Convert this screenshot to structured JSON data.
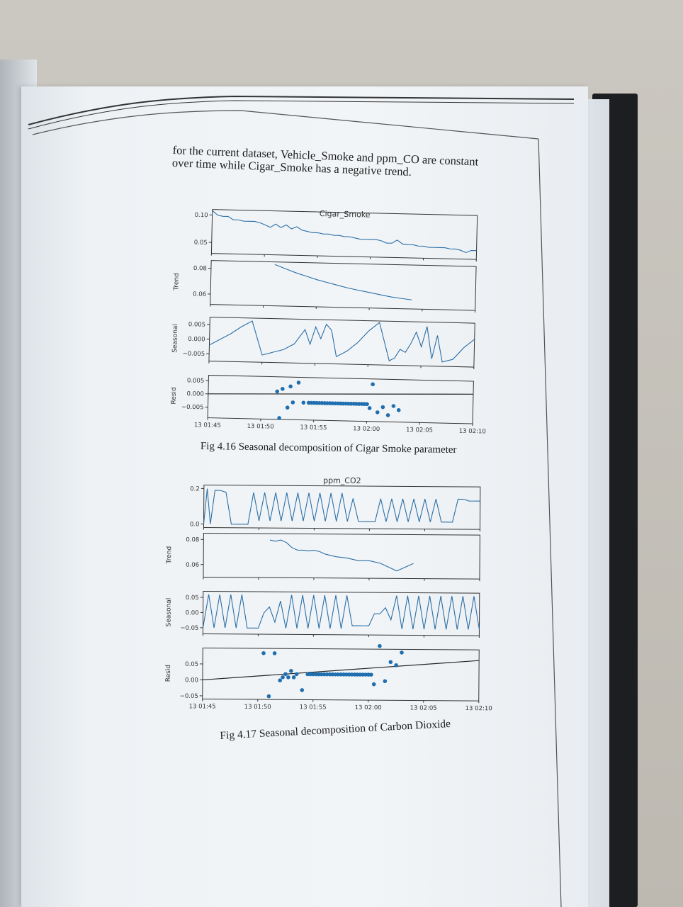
{
  "paragraph": {
    "line1": "for the current dataset, Vehicle_Smoke and ppm_CO are constant",
    "line2": "over time while Cigar_Smoke has a negative trend."
  },
  "chart_data": [
    {
      "type": "line",
      "title": "Cigar_Smoke",
      "caption": "Fig 4.16 Seasonal decomposition of Cigar Smoke parameter",
      "x_ticks": [
        "13 01:45",
        "13 01:50",
        "13 01:55",
        "13 02:00",
        "13 02:05",
        "13 02:10"
      ],
      "panels": [
        {
          "ylabel": "",
          "yticks": [
            "0.10",
            "0.05"
          ],
          "ylim": [
            0.03,
            0.11
          ],
          "x": [
            0,
            1,
            2,
            3,
            4,
            5,
            6,
            7,
            8,
            9,
            10,
            11,
            12,
            13,
            14,
            15,
            16,
            17,
            18,
            19,
            20,
            21,
            22,
            23,
            24,
            25,
            26,
            27,
            28,
            29,
            30,
            31,
            32,
            33,
            34,
            35,
            36,
            37,
            38,
            39,
            40,
            41,
            42,
            43,
            44,
            45,
            46,
            47,
            48,
            49,
            50
          ],
          "values": [
            0.108,
            0.1,
            0.098,
            0.098,
            0.092,
            0.092,
            0.09,
            0.09,
            0.09,
            0.088,
            0.084,
            0.08,
            0.086,
            0.08,
            0.085,
            0.078,
            0.082,
            0.076,
            0.074,
            0.072,
            0.072,
            0.07,
            0.07,
            0.068,
            0.068,
            0.066,
            0.066,
            0.064,
            0.062,
            0.062,
            0.062,
            0.062,
            0.06,
            0.056,
            0.056,
            0.062,
            0.055,
            0.054,
            0.054,
            0.052,
            0.052,
            0.05,
            0.05,
            0.05,
            0.05,
            0.048,
            0.048,
            0.046,
            0.042,
            0.046,
            0.046
          ]
        },
        {
          "ylabel": "Trend",
          "yticks": [
            "0.08",
            "0.06"
          ],
          "ylim": [
            0.052,
            0.086
          ],
          "x": [
            12,
            14,
            16,
            18,
            20,
            22,
            24,
            26,
            28,
            30,
            32,
            34,
            36,
            38
          ],
          "values": [
            0.084,
            0.081,
            0.078,
            0.0755,
            0.073,
            0.071,
            0.069,
            0.067,
            0.0655,
            0.064,
            0.0625,
            0.061,
            0.06,
            0.059
          ]
        },
        {
          "ylabel": "Seasonal",
          "yticks": [
            "0.005",
            "0.000",
            "−0.005"
          ],
          "ylim": [
            -0.0075,
            0.0075
          ],
          "x": [
            0,
            2,
            4,
            6,
            8,
            10,
            12,
            14,
            16,
            18,
            19,
            20,
            21,
            22,
            23,
            24,
            26,
            28,
            30,
            32,
            34,
            35,
            36,
            37,
            38,
            39,
            40,
            41,
            42,
            43,
            44,
            46,
            48,
            50
          ],
          "values": [
            -0.002,
            0.0,
            0.002,
            0.0045,
            0.0065,
            -0.005,
            -0.004,
            -0.003,
            -0.001,
            0.004,
            -0.001,
            0.005,
            0.001,
            0.006,
            0.004,
            -0.005,
            -0.003,
            0.0,
            0.004,
            0.007,
            -0.006,
            -0.005,
            -0.002,
            -0.003,
            0.0,
            0.004,
            -0.001,
            0.006,
            -0.005,
            0.003,
            -0.006,
            -0.005,
            -0.001,
            0.002
          ]
        },
        {
          "ylabel": "Resid",
          "yticks": [
            "0.005",
            "0.000",
            "−0.005"
          ],
          "ylim": [
            -0.009,
            0.007
          ],
          "scatter": true,
          "x": [
            13,
            13.5,
            14,
            15,
            15.5,
            16,
            17,
            18,
            19,
            19.5,
            20,
            20.5,
            21,
            21.5,
            22,
            22.5,
            23,
            23.5,
            24,
            24.5,
            25,
            25.5,
            26,
            26.5,
            27,
            27.5,
            28,
            28.5,
            29,
            29.5,
            30,
            30.5,
            31,
            32,
            33,
            34,
            35,
            36
          ],
          "values": [
            0.0015,
            -0.0085,
            0.0025,
            -0.0045,
            0.0035,
            -0.0025,
            0.005,
            -0.0025,
            -0.0025,
            -0.0025,
            -0.0025,
            -0.0025,
            -0.0025,
            -0.0025,
            -0.0025,
            -0.0025,
            -0.0025,
            -0.0025,
            -0.0025,
            -0.0025,
            -0.0025,
            -0.0025,
            -0.0025,
            -0.0025,
            -0.0025,
            -0.0025,
            -0.0025,
            -0.0025,
            -0.0025,
            -0.0025,
            -0.0025,
            -0.004,
            0.005,
            -0.0055,
            -0.0035,
            -0.0065,
            -0.003,
            -0.0045
          ]
        }
      ]
    },
    {
      "type": "line",
      "title": "ppm_CO2",
      "caption": "Fig 4.17 Seasonal decomposition of Carbon Dioxide",
      "x_ticks": [
        "13 01:45",
        "13 01:50",
        "13 01:55",
        "13 02:00",
        "13 02:05",
        "13 02:10"
      ],
      "panels": [
        {
          "ylabel": "",
          "yticks": [
            "0.2",
            "0.0"
          ],
          "ylim": [
            -0.02,
            0.22
          ],
          "x": [
            0,
            0.6,
            1.2,
            2,
            3,
            4,
            5,
            6,
            7,
            8,
            9,
            10,
            11,
            12,
            13,
            14,
            15,
            16,
            17,
            18,
            19,
            20,
            21,
            22,
            23,
            24,
            25,
            26,
            27,
            28,
            29,
            30,
            31,
            32,
            33,
            34,
            35,
            36,
            37,
            38,
            39,
            40,
            41,
            42,
            43,
            44,
            45,
            46,
            47,
            48,
            49,
            50
          ],
          "values": [
            0.0,
            0.2,
            0.0,
            0.19,
            0.19,
            0.18,
            0.0,
            0.0,
            0.0,
            0.0,
            0.18,
            0.02,
            0.18,
            0.02,
            0.18,
            0.02,
            0.18,
            0.02,
            0.18,
            0.02,
            0.18,
            0.02,
            0.18,
            0.02,
            0.18,
            0.02,
            0.18,
            0.02,
            0.15,
            0.02,
            0.02,
            0.02,
            0.02,
            0.15,
            0.02,
            0.15,
            0.02,
            0.15,
            0.02,
            0.15,
            0.02,
            0.15,
            0.02,
            0.15,
            0.02,
            0.02,
            0.02,
            0.15,
            0.15,
            0.14,
            0.14,
            0.14
          ]
        },
        {
          "ylabel": "Trend",
          "yticks": [
            "0.08",
            "0.06"
          ],
          "ylim": [
            0.05,
            0.085
          ],
          "x": [
            12,
            13,
            14,
            15,
            16,
            17,
            18,
            19,
            20,
            21,
            22,
            24,
            26,
            28,
            30,
            32,
            33,
            34,
            35,
            36,
            37,
            38
          ],
          "values": [
            0.08,
            0.079,
            0.08,
            0.078,
            0.074,
            0.072,
            0.072,
            0.0715,
            0.072,
            0.071,
            0.069,
            0.067,
            0.066,
            0.064,
            0.064,
            0.062,
            0.06,
            0.058,
            0.056,
            0.058,
            0.06,
            0.062
          ]
        },
        {
          "ylabel": "Seasonal",
          "yticks": [
            "0.05",
            "0.00",
            "−0.05"
          ],
          "ylim": [
            -0.07,
            0.07
          ],
          "x": [
            0,
            1,
            2,
            3,
            4,
            5,
            6,
            7,
            8,
            9,
            10,
            11,
            12,
            13,
            14,
            15,
            16,
            17,
            18,
            19,
            20,
            21,
            22,
            23,
            24,
            25,
            26,
            27,
            28,
            29,
            30,
            31,
            32,
            33,
            34,
            35,
            36,
            37,
            38,
            39,
            40,
            41,
            42,
            43,
            44,
            45,
            46,
            47,
            48,
            49,
            50
          ],
          "values": [
            -0.05,
            0.06,
            -0.05,
            0.06,
            -0.05,
            0.06,
            -0.05,
            0.06,
            -0.05,
            -0.05,
            -0.05,
            0.0,
            0.02,
            -0.03,
            0.04,
            -0.05,
            0.06,
            -0.05,
            0.06,
            -0.05,
            0.06,
            -0.05,
            0.06,
            -0.05,
            0.06,
            -0.05,
            0.06,
            -0.04,
            -0.04,
            -0.04,
            -0.04,
            0.0,
            0.0,
            0.02,
            -0.02,
            0.06,
            -0.05,
            0.06,
            -0.05,
            0.06,
            -0.05,
            0.06,
            -0.05,
            0.06,
            -0.05,
            0.06,
            -0.05,
            0.06,
            -0.05,
            0.06,
            -0.05
          ]
        },
        {
          "ylabel": "Resid",
          "yticks": [
            "0.05",
            "0.00",
            "−0.05"
          ],
          "ylim": [
            -0.06,
            0.1
          ],
          "scatter": true,
          "x": [
            11,
            12,
            13,
            14,
            14.5,
            15,
            15.5,
            16,
            16.5,
            17,
            18,
            19,
            19.5,
            20,
            20.5,
            21,
            21.5,
            22,
            22.5,
            23,
            23.5,
            24,
            24.5,
            25,
            25.5,
            26,
            26.5,
            27,
            27.5,
            28,
            28.5,
            29,
            29.5,
            30,
            30.5,
            31,
            32,
            33,
            34,
            35,
            36
          ],
          "values": [
            0.085,
            -0.05,
            0.085,
            0.0,
            0.01,
            0.02,
            0.01,
            0.03,
            0.01,
            0.02,
            -0.03,
            0.02,
            0.02,
            0.02,
            0.02,
            0.02,
            0.02,
            0.02,
            0.02,
            0.02,
            0.02,
            0.02,
            0.02,
            0.02,
            0.02,
            0.02,
            0.02,
            0.02,
            0.02,
            0.02,
            0.02,
            0.02,
            0.02,
            0.02,
            0.02,
            -0.01,
            0.11,
            0.0,
            0.06,
            0.05,
            0.09
          ]
        }
      ]
    }
  ]
}
